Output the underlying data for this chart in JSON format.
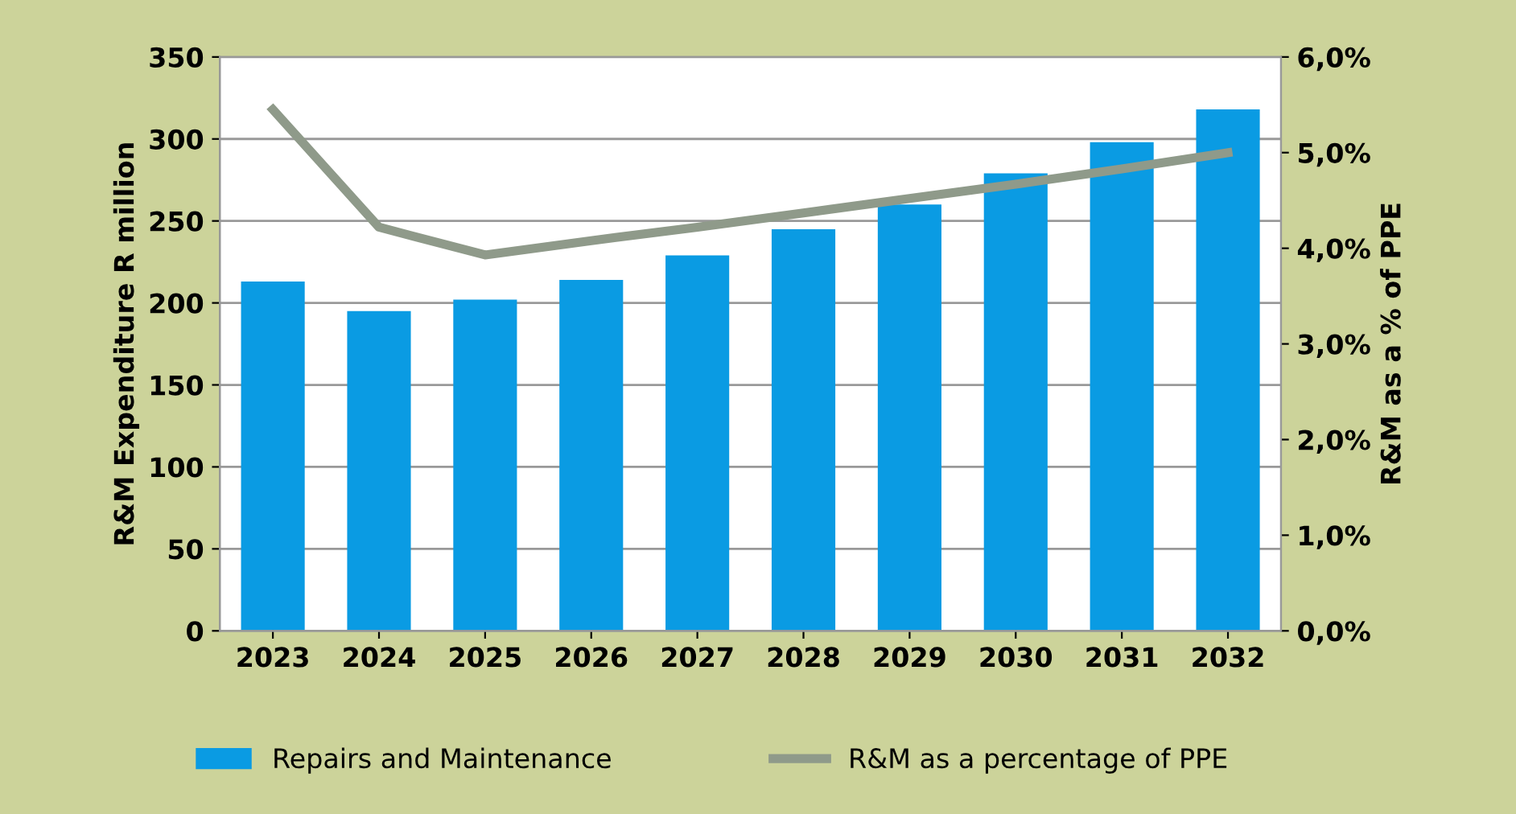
{
  "chart_data": {
    "type": "bar",
    "categories": [
      "2023",
      "2024",
      "2025",
      "2026",
      "2027",
      "2028",
      "2029",
      "2030",
      "2031",
      "2032"
    ],
    "series": [
      {
        "name": "Repairs and Maintenance",
        "color": "#0a9be3",
        "values": [
          213,
          195,
          202,
          214,
          229,
          245,
          260,
          279,
          298,
          318
        ]
      },
      {
        "name": "R&M as a percentage of PPE",
        "type": "line",
        "axis": "y2",
        "color": "#8f9a8a",
        "values": [
          5.45,
          4.22,
          3.93,
          4.08,
          4.22,
          4.37,
          4.52,
          4.67,
          4.83,
          5.0
        ]
      }
    ],
    "ylabel": "R&M Expenditure R million",
    "y2label": "R&M as a % of PPE",
    "ylim": [
      0,
      350
    ],
    "yticks": [
      0,
      50,
      100,
      150,
      200,
      250,
      300,
      350
    ],
    "y2lim": [
      0,
      6
    ],
    "y2ticks": [
      {
        "value": 0,
        "label": "0,0%"
      },
      {
        "value": 1,
        "label": "1,0%"
      },
      {
        "value": 2,
        "label": "2,0%"
      },
      {
        "value": 3,
        "label": "3,0%"
      },
      {
        "value": 4,
        "label": "4,0%"
      },
      {
        "value": 5,
        "label": "5,0%"
      },
      {
        "value": 6,
        "label": "6,0%"
      }
    ],
    "grid": "y",
    "legend": "bottom"
  }
}
